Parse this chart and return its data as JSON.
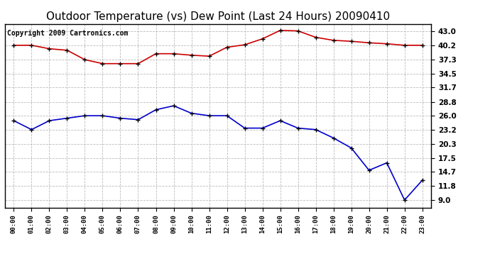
{
  "title": "Outdoor Temperature (vs) Dew Point (Last 24 Hours) 20090410",
  "copyright": "Copyright 2009 Cartronics.com",
  "x_labels": [
    "00:00",
    "01:00",
    "02:00",
    "03:00",
    "04:00",
    "05:00",
    "06:00",
    "07:00",
    "08:00",
    "09:00",
    "10:00",
    "11:00",
    "12:00",
    "13:00",
    "14:00",
    "15:00",
    "16:00",
    "17:00",
    "18:00",
    "19:00",
    "20:00",
    "21:00",
    "22:00",
    "23:00"
  ],
  "temp_data": [
    40.2,
    40.2,
    39.5,
    39.2,
    37.3,
    36.5,
    36.5,
    36.5,
    38.5,
    38.5,
    38.2,
    38.0,
    39.8,
    40.3,
    41.5,
    43.2,
    43.1,
    41.8,
    41.2,
    41.0,
    40.7,
    40.5,
    40.2,
    40.2
  ],
  "dew_data": [
    25.0,
    23.2,
    25.0,
    25.5,
    26.0,
    26.0,
    25.5,
    25.2,
    27.2,
    28.0,
    26.5,
    26.0,
    26.0,
    23.5,
    23.5,
    25.0,
    23.5,
    23.2,
    21.5,
    19.5,
    15.0,
    16.5,
    9.0,
    13.0
  ],
  "temp_color": "#cc0000",
  "dew_color": "#0000cc",
  "marker_color": "black",
  "bg_color": "#ffffff",
  "plot_bg_color": "#ffffff",
  "grid_color": "#bbbbbb",
  "yticks": [
    9.0,
    11.8,
    14.7,
    17.5,
    20.3,
    23.2,
    26.0,
    28.8,
    31.7,
    34.5,
    37.3,
    40.2,
    43.0
  ],
  "ylim": [
    7.5,
    44.5
  ],
  "title_fontsize": 11,
  "copyright_fontsize": 7
}
